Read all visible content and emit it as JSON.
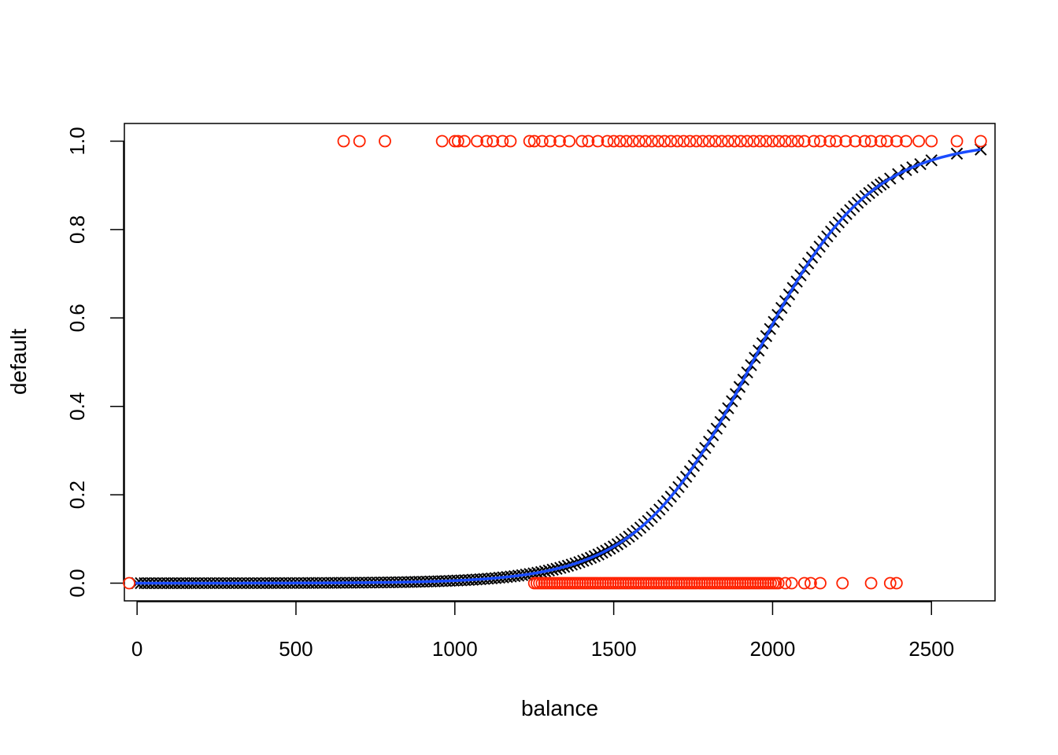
{
  "chart_data": {
    "type": "scatter",
    "title": "",
    "xlabel": "balance",
    "ylabel": "default",
    "xlim": [
      -40,
      2700
    ],
    "ylim": [
      -0.04,
      1.04
    ],
    "x_ticks": [
      0,
      500,
      1000,
      1500,
      2000,
      2500
    ],
    "y_ticks": [
      0.0,
      0.2,
      0.4,
      0.6,
      0.8,
      1.0
    ],
    "x_tick_labels": [
      "0",
      "500",
      "1000",
      "1500",
      "2000",
      "2500"
    ],
    "y_tick_labels": [
      "0.0",
      "0.2",
      "0.4",
      "0.6",
      "0.8",
      "1.0"
    ],
    "grid": false,
    "legend": "none",
    "colors": {
      "observed": "#ff2200",
      "fitted_points": "#000000",
      "fitted_curve": "#1a4cff"
    },
    "logistic_fit": {
      "intercept": -10.6513,
      "slope": 0.005499
    },
    "series": [
      {
        "marker": "circle",
        "x": [
          650,
          700,
          780,
          960,
          1000,
          1010,
          1030,
          1070,
          1100,
          1120,
          1150,
          1175,
          1235,
          1250,
          1275,
          1300,
          1330,
          1360,
          1400,
          1420,
          1450,
          1480,
          1500,
          1520,
          1540,
          1560,
          1580,
          1600,
          1620,
          1640,
          1660,
          1680,
          1700,
          1720,
          1740,
          1760,
          1780,
          1800,
          1820,
          1840,
          1860,
          1880,
          1900,
          1920,
          1940,
          1960,
          1980,
          2000,
          2020,
          2040,
          2060,
          2080,
          2100,
          2130,
          2150,
          2180,
          2200,
          2230,
          2260,
          2290,
          2310,
          2340,
          2360,
          2390,
          2420,
          2460,
          2500,
          2580,
          2655
        ],
        "y_value": 1
      },
      {
        "marker": "circle",
        "x_range": [
          1250,
          2020
        ],
        "x_extra": [
          2040,
          2060,
          2100,
          2120,
          2150,
          2220,
          2310,
          2370,
          2390
        ],
        "y_value": 0
      },
      {
        "marker": "cross",
        "x_dense_range": [
          0,
          2340
        ],
        "x_sparse": [
          2350,
          2370,
          2395,
          2420,
          2440,
          2465,
          2500,
          2580,
          2655
        ]
      }
    ]
  }
}
